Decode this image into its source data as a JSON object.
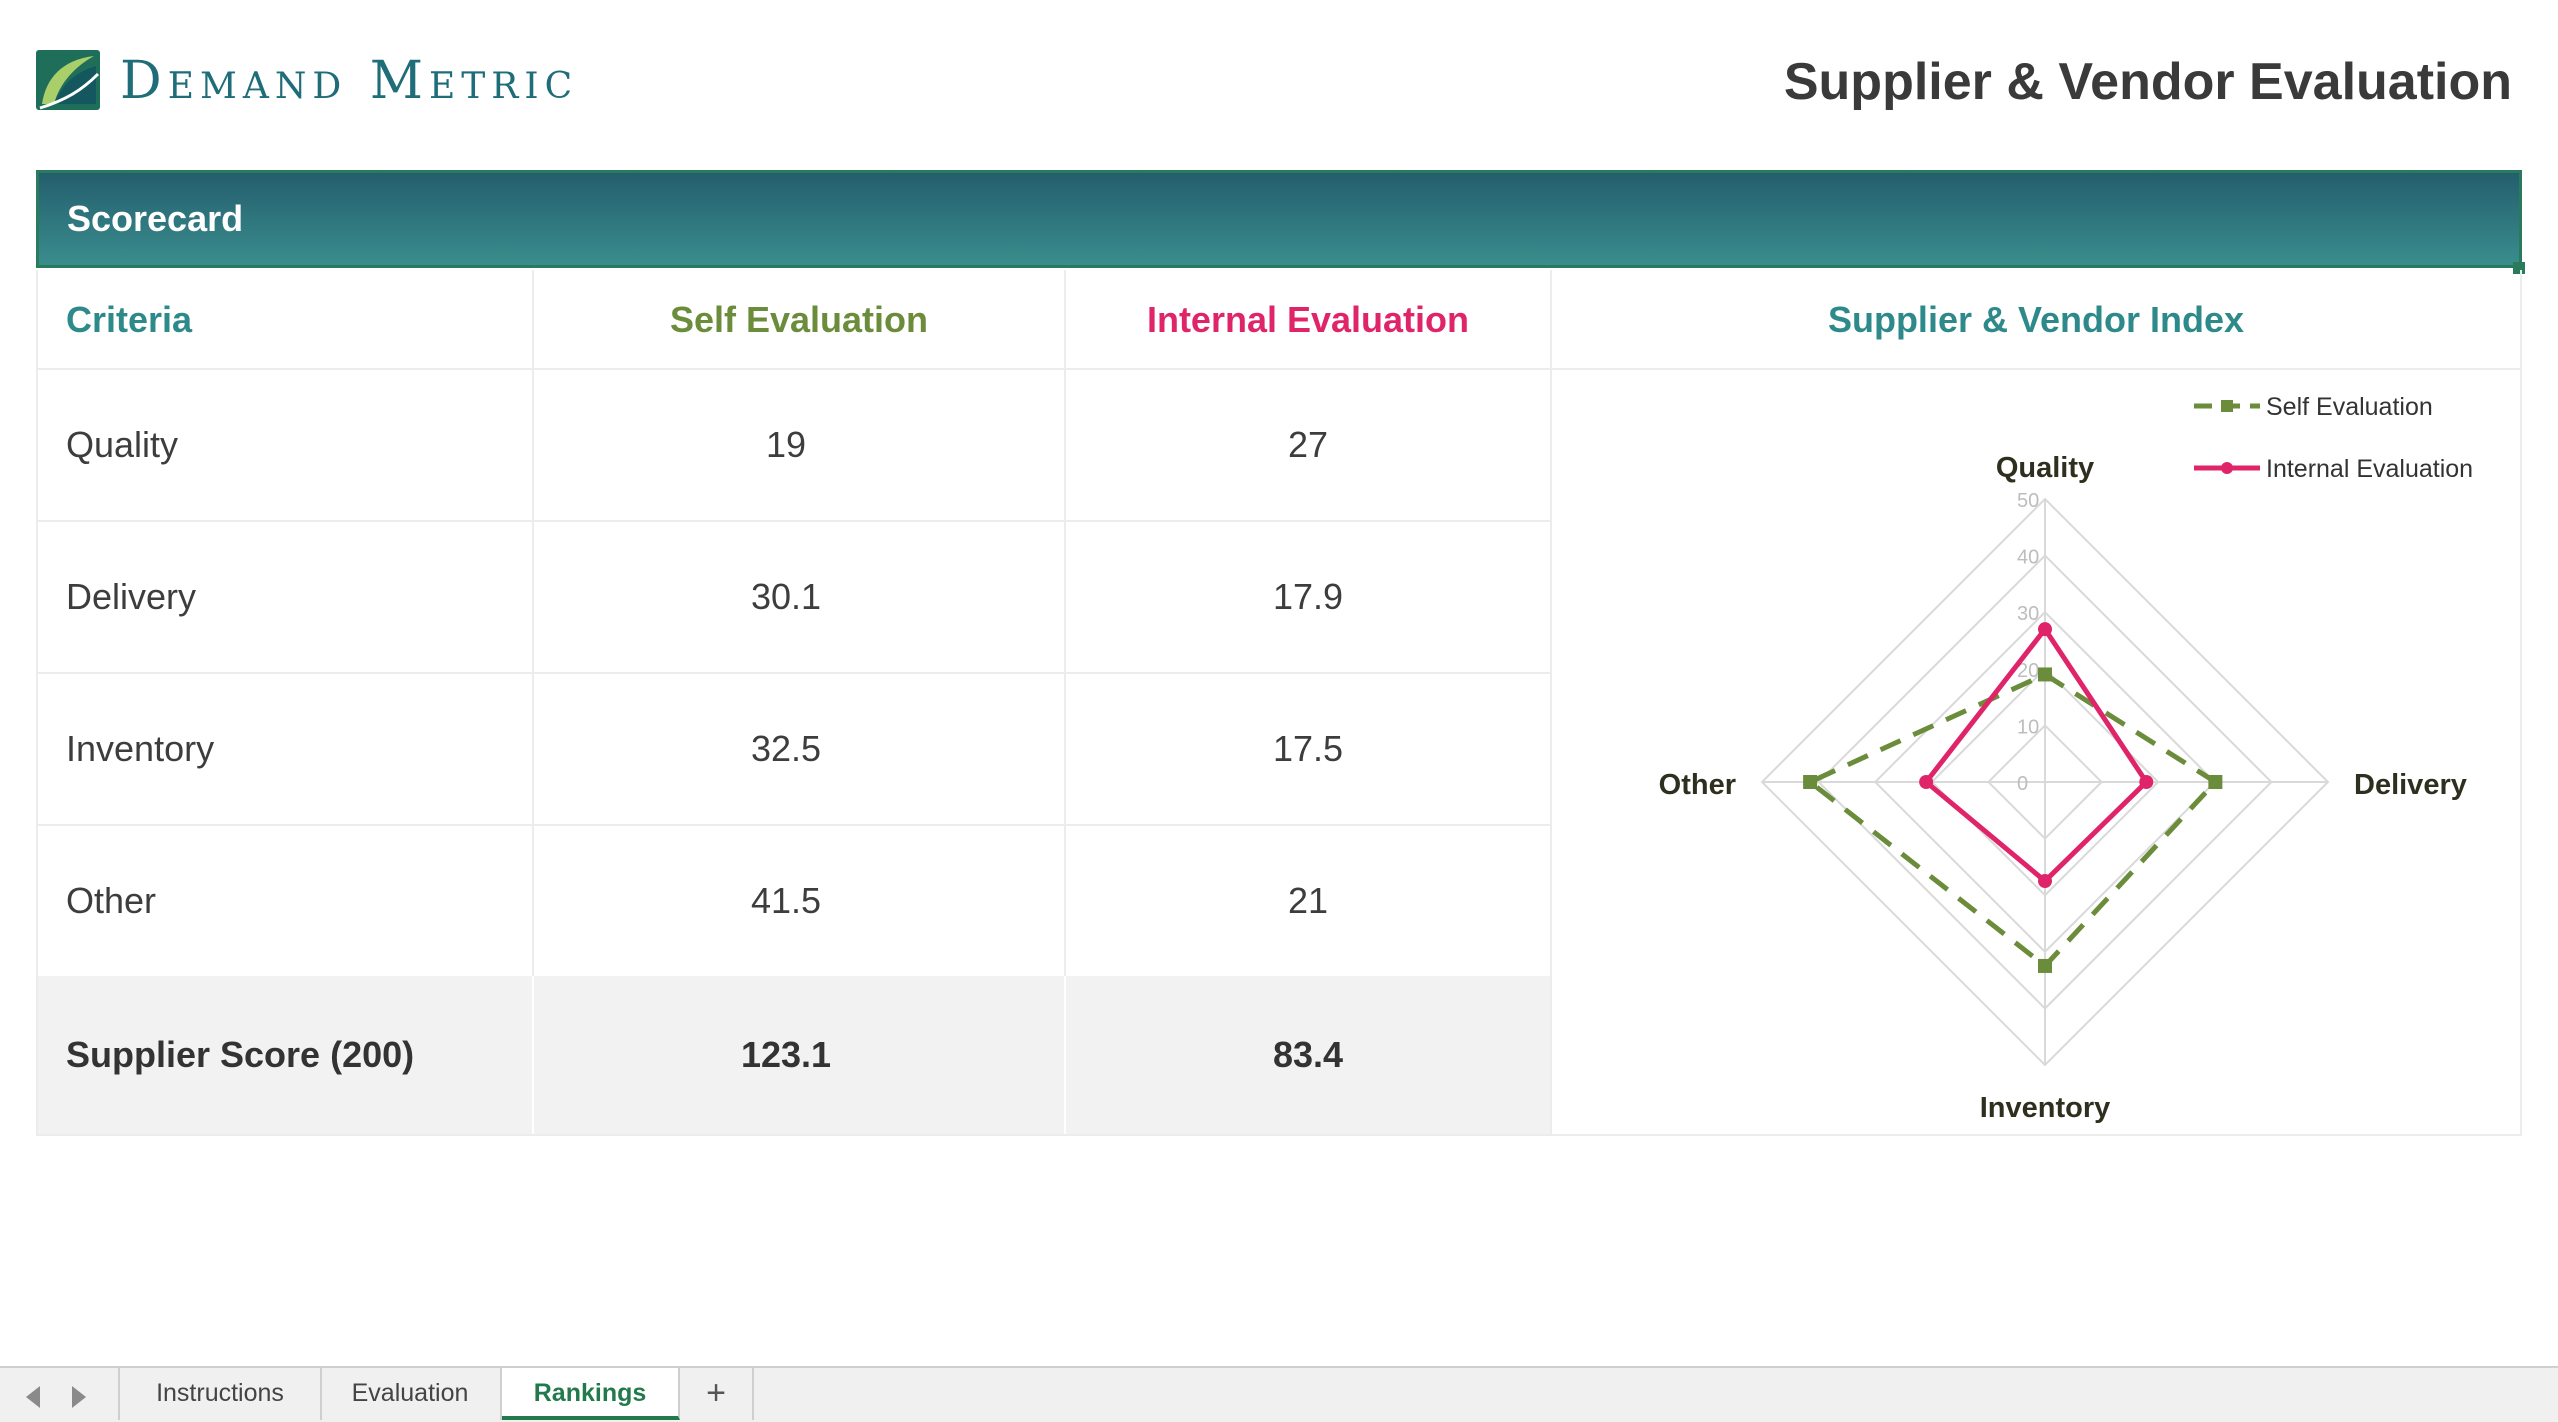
{
  "header": {
    "brand": "Demand Metric",
    "title": "Supplier & Vendor Evaluation"
  },
  "banner": {
    "label": "Scorecard"
  },
  "table": {
    "columns": {
      "criteria": "Criteria",
      "self": "Self Evaluation",
      "internal": "Internal Evaluation",
      "index": "Supplier & Vendor Index"
    },
    "rows": [
      {
        "criteria": "Quality",
        "self": "19",
        "internal": "27"
      },
      {
        "criteria": "Delivery",
        "self": "30.1",
        "internal": "17.9"
      },
      {
        "criteria": "Inventory",
        "self": "32.5",
        "internal": "17.5"
      },
      {
        "criteria": "Other",
        "self": "41.5",
        "internal": "21"
      }
    ],
    "score": {
      "label": "Supplier Score (200)",
      "self": "123.1",
      "internal": "83.4"
    }
  },
  "colors": {
    "teal": "#2e8a8a",
    "self": "#6b8c3a",
    "internal": "#e0246a"
  },
  "chart_data": {
    "type": "radar",
    "categories": [
      "Quality",
      "Delivery",
      "Inventory",
      "Other"
    ],
    "rlim": [
      0,
      50
    ],
    "ticks": [
      "0",
      "10",
      "20",
      "30",
      "40",
      "50"
    ],
    "series": [
      {
        "name": "Self Evaluation",
        "values": [
          19,
          30.1,
          32.5,
          41.5
        ],
        "color": "#6b8c3a",
        "style": "dashed"
      },
      {
        "name": "Internal Evaluation",
        "values": [
          27,
          17.9,
          17.5,
          21
        ],
        "color": "#e0246a",
        "style": "solid"
      }
    ],
    "legend": "top-right",
    "grid": true
  },
  "tabs": {
    "items": [
      "Instructions",
      "Evaluation",
      "Rankings"
    ],
    "add": "+",
    "active": "Rankings"
  }
}
